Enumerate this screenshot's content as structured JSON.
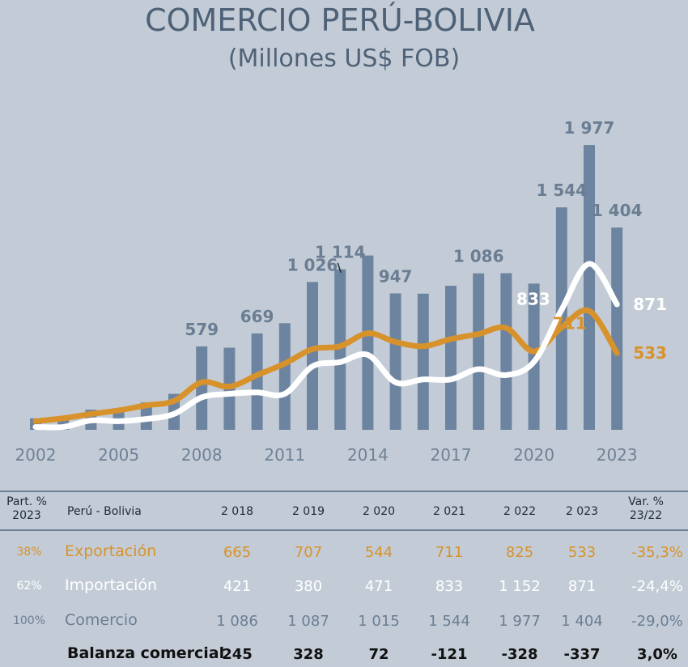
{
  "chart_data": {
    "type": "bar",
    "title": "COMERCIO PERÚ-BOLIVIA",
    "subtitle": "(Millones US$ FOB)",
    "years": [
      2002,
      2003,
      2004,
      2005,
      2006,
      2007,
      2008,
      2009,
      2010,
      2011,
      2012,
      2013,
      2014,
      2015,
      2016,
      2017,
      2018,
      2019,
      2020,
      2021,
      2022,
      2023
    ],
    "x_tick_labels": [
      "2002",
      "2005",
      "2008",
      "2011",
      "2014",
      "2017",
      "2020",
      "2023"
    ],
    "series": [
      {
        "name": "Comercio",
        "type": "bar",
        "color": "#6d84a0",
        "values": [
          80,
          95,
          140,
          150,
          190,
          250,
          579,
          570,
          669,
          740,
          1026,
          1114,
          1210,
          947,
          945,
          1000,
          1086,
          1087,
          1015,
          1544,
          1977,
          1404
        ]
      },
      {
        "name": "Exportación",
        "type": "line",
        "color": "#d8922c",
        "values": [
          60,
          80,
          110,
          135,
          170,
          200,
          330,
          300,
          380,
          460,
          560,
          580,
          670,
          610,
          580,
          630,
          665,
          707,
          544,
          711,
          825,
          533
        ]
      },
      {
        "name": "Importación",
        "type": "line",
        "color": "#ffffff",
        "values": [
          20,
          20,
          65,
          60,
          75,
          110,
          225,
          250,
          260,
          250,
          440,
          470,
          520,
          330,
          350,
          350,
          421,
          380,
          471,
          833,
          1152,
          871
        ]
      }
    ],
    "bar_labels": [
      {
        "year": 2008,
        "text": "579"
      },
      {
        "year": 2010,
        "text": "669"
      },
      {
        "year": 2012,
        "text": "1 026"
      },
      {
        "year": 2013,
        "text": "1 114"
      },
      {
        "year": 2015,
        "text": "947"
      },
      {
        "year": 2018,
        "text": "1 086"
      },
      {
        "year": 2021,
        "text": "1 544"
      },
      {
        "year": 2022,
        "text": "1 977"
      },
      {
        "year": 2023,
        "text": "1 404"
      }
    ],
    "line_labels": [
      {
        "series": "Importación",
        "year": 2021,
        "text": "833"
      },
      {
        "series": "Exportación",
        "year": 2021,
        "text": "711"
      },
      {
        "series": "Importación",
        "year": 2023,
        "text": "871"
      },
      {
        "series": "Exportación",
        "year": 2023,
        "text": "533"
      }
    ],
    "ylim": [
      0,
      2000
    ],
    "grid": false,
    "legend": "none"
  },
  "table": {
    "header": {
      "part_line1": "Part. %",
      "part_line2": "2023",
      "label": "Perú - Bolivia",
      "years": [
        "2 018",
        "2 019",
        "2 020",
        "2 021",
        "2 022",
        "2 023"
      ],
      "var_line1": "Var. %",
      "var_line2": "23/22"
    },
    "rows": [
      {
        "part": "38%",
        "label": "Exportación",
        "values": [
          "665",
          "707",
          "544",
          "711",
          "825",
          "533"
        ],
        "var": "-35,3%"
      },
      {
        "part": "62%",
        "label": "Importación",
        "values": [
          "421",
          "380",
          "471",
          "833",
          "1 152",
          "871"
        ],
        "var": "-24,4%"
      },
      {
        "part": "100%",
        "label": "Comercio",
        "values": [
          "1 086",
          "1 087",
          "1 015",
          "1 544",
          "1 977",
          "1 404"
        ],
        "var": "-29,0%"
      },
      {
        "part": "",
        "label": "Balanza comercial",
        "values": [
          "245",
          "328",
          "72",
          "-121",
          "-328",
          "-337"
        ],
        "var": "3,0%"
      }
    ]
  }
}
